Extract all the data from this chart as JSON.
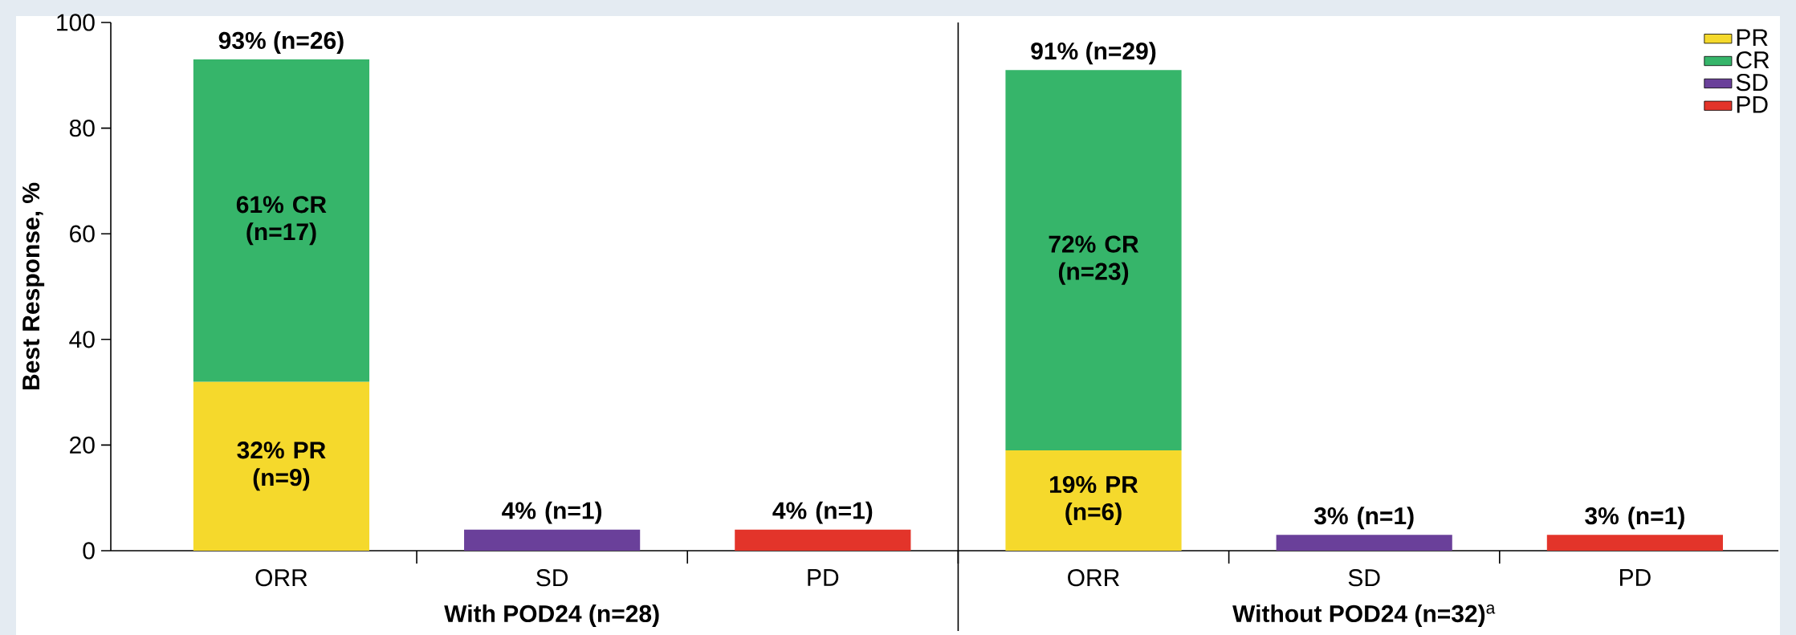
{
  "chart_data": {
    "type": "bar",
    "stacked": true,
    "ylabel": "Best Response, %",
    "categories": [
      "ORR",
      "SD",
      "PD",
      "ORR",
      "SD",
      "PD"
    ],
    "series": [
      {
        "name": "PR",
        "color": "#f5d92c",
        "values": [
          32,
          null,
          null,
          19,
          null,
          null
        ],
        "value_labels": [
          "32% PR (n=9)",
          null,
          null,
          "19% PR (n=6)",
          null,
          null
        ]
      },
      {
        "name": "CR",
        "color": "#36b56a",
        "values": [
          61,
          null,
          null,
          72,
          null,
          null
        ],
        "value_labels": [
          "61% CR (n=17)",
          null,
          null,
          "72% CR (n=23)",
          null,
          null
        ]
      },
      {
        "name": "SD",
        "color": "#6a409a",
        "values": [
          null,
          4,
          null,
          null,
          3,
          null
        ],
        "value_labels": [
          null,
          "4% (n=1)",
          null,
          null,
          "3% (n=1)",
          null
        ]
      },
      {
        "name": "PD",
        "color": "#e3342a",
        "values": [
          null,
          null,
          4,
          null,
          null,
          3
        ],
        "value_labels": [
          null,
          null,
          "4% (n=1)",
          null,
          null,
          "3% (n=1)"
        ]
      }
    ],
    "totals": [
      "93% (n=26)",
      null,
      null,
      "91% (n=29)",
      null,
      null
    ],
    "ylim": [
      0,
      100
    ],
    "yticks": [
      0,
      20,
      40,
      60,
      80,
      100
    ],
    "annotations": [
      "**With POD24 (n=28)**",
      "**Without POD24 (n=32)**$^{a}$"
    ],
    "legend": "top right",
    "grid": false
  }
}
